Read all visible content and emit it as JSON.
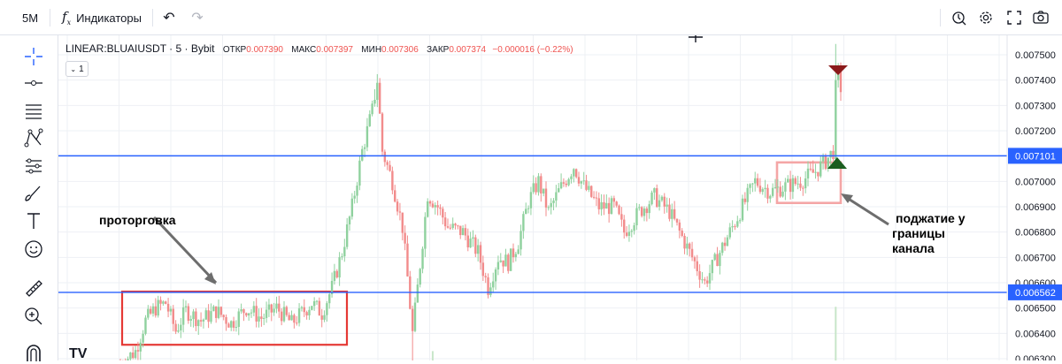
{
  "toolbar": {
    "interval": "5М",
    "indicators_icon": "fx-icon",
    "indicators_label": "Индикаторы",
    "undo_icon": "undo-icon",
    "redo_icon": "redo-icon",
    "right_icons": [
      "alert-clock-icon",
      "settings-gear-icon",
      "fullscreen-icon",
      "screenshot-camera-icon"
    ]
  },
  "left_tools": [
    "crosshair-icon",
    "horizontal-line-icon",
    "fib-lines-icon",
    "pattern-icon",
    "measure-lines-icon",
    "brush-icon",
    "text-icon",
    "emoji-icon",
    "ruler-icon",
    "zoom-in-icon",
    "magnet-icon"
  ],
  "legend": {
    "symbol": "LINEAR:BLUAIUSDT · 5 · Bybit",
    "open_label": "ОТКР",
    "open_value": "0.007390",
    "high_label": "МАКС",
    "high_value": "0.007397",
    "low_label": "МИН",
    "low_value": "0.007306",
    "close_label": "ЗАКР",
    "close_value": "0.007374",
    "change": "−0.000016 (−0.22%)",
    "collapse_label": "1"
  },
  "annotations": {
    "consolidation": "проторговка",
    "squeeze_line1": "поджатие у",
    "squeeze_line2": "границы",
    "squeeze_line3": "канала"
  },
  "colors": {
    "up": "#26a69a",
    "up_light": "#8fd19e",
    "down": "#f28b8b",
    "level": "#2962ff",
    "box": "#e53935",
    "box_light": "#f4a6a6"
  },
  "chart_data": {
    "type": "candlestick",
    "y_ticks": [
      "0.007500",
      "0.007400",
      "0.007300",
      "0.007200",
      "0.007100",
      "0.007000",
      "0.006900",
      "0.006800",
      "0.006700",
      "0.006600",
      "0.006500",
      "0.006400",
      "0.006300"
    ],
    "ylim": [
      0.00627,
      0.00756
    ],
    "levels": [
      {
        "value": 0.007101,
        "label": "0.007101"
      },
      {
        "value": 0.006562,
        "label": "0.006562"
      }
    ],
    "regions": [
      {
        "name": "consolidation-box",
        "price_top": 0.006565,
        "price_bottom": 0.006355
      },
      {
        "name": "squeeze-box",
        "price_top": 0.007075,
        "price_bottom": 0.006915
      }
    ],
    "path_points": [
      [
        0,
        0.00628
      ],
      [
        6,
        0.00633
      ],
      [
        10,
        0.00645
      ],
      [
        14,
        0.0065
      ],
      [
        18,
        0.00652
      ],
      [
        22,
        0.00641
      ],
      [
        26,
        0.00649
      ],
      [
        32,
        0.00645
      ],
      [
        38,
        0.00649
      ],
      [
        44,
        0.00644
      ],
      [
        50,
        0.0065
      ],
      [
        56,
        0.00646
      ],
      [
        62,
        0.0065
      ],
      [
        68,
        0.00644
      ],
      [
        72,
        0.00648
      ],
      [
        76,
        0.00652
      ],
      [
        80,
        0.00648
      ],
      [
        84,
        0.00658
      ],
      [
        88,
        0.00672
      ],
      [
        92,
        0.0069
      ],
      [
        96,
        0.00712
      ],
      [
        100,
        0.00728
      ],
      [
        102,
        0.0074
      ],
      [
        104,
        0.00712
      ],
      [
        108,
        0.007
      ],
      [
        112,
        0.00682
      ],
      [
        114,
        0.00662
      ],
      [
        116,
        0.0064
      ],
      [
        118,
        0.00658
      ],
      [
        122,
        0.00695
      ],
      [
        126,
        0.0069
      ],
      [
        130,
        0.00682
      ],
      [
        136,
        0.0068
      ],
      [
        142,
        0.00672
      ],
      [
        146,
        0.00658
      ],
      [
        150,
        0.0067
      ],
      [
        154,
        0.00668
      ],
      [
        158,
        0.00676
      ],
      [
        162,
        0.00692
      ],
      [
        166,
        0.007
      ],
      [
        170,
        0.00688
      ],
      [
        174,
        0.00696
      ],
      [
        180,
        0.00706
      ],
      [
        184,
        0.00698
      ],
      [
        190,
        0.0069
      ],
      [
        196,
        0.0069
      ],
      [
        200,
        0.0068
      ],
      [
        206,
        0.00688
      ],
      [
        212,
        0.00694
      ],
      [
        218,
        0.00688
      ],
      [
        224,
        0.00676
      ],
      [
        228,
        0.00668
      ],
      [
        232,
        0.0066
      ],
      [
        236,
        0.00668
      ],
      [
        242,
        0.0068
      ],
      [
        248,
        0.00692
      ],
      [
        252,
        0.007
      ],
      [
        258,
        0.00696
      ],
      [
        264,
        0.00698
      ],
      [
        270,
        0.007
      ],
      [
        276,
        0.00704
      ],
      [
        280,
        0.00708
      ],
      [
        283,
        0.00712
      ],
      [
        284,
        0.00735
      ],
      [
        285,
        0.00742
      ],
      [
        286,
        0.00737
      ]
    ],
    "volume_bars": [
      {
        "x": 284,
        "value": 0.006505,
        "base": 0.00627
      },
      {
        "x": 124,
        "value": 0.00633,
        "base": 0.00627
      }
    ]
  }
}
